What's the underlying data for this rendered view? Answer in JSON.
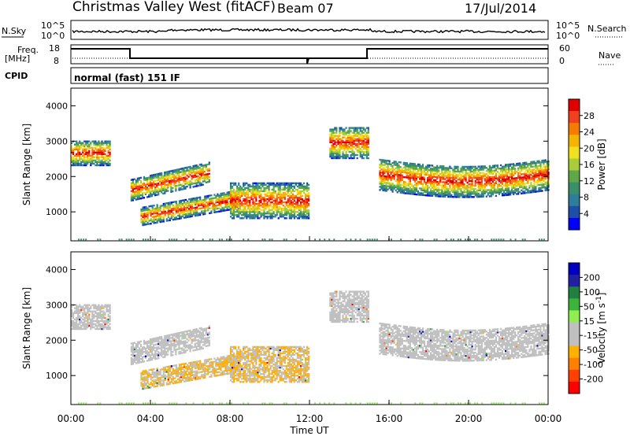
{
  "header": {
    "station": "Christmas Valley West (fitACF)",
    "beam": "Beam 07",
    "date": "17/Jul/2014"
  },
  "panels": {
    "sky_label": "N.Sky",
    "search_label": "N.Search",
    "freq_label": "Freq.",
    "freq_unit": "[MHz]",
    "nave_label": "Nave",
    "cpid_label": "CPID",
    "cpid_value": "normal (fast) 151 IF",
    "sky_ticks_left": [
      "10^5",
      "10^0"
    ],
    "sky_ticks_right": [
      "10^5",
      "10^0"
    ],
    "freq_ticks": [
      "18",
      "8"
    ],
    "nave_ticks": [
      "60",
      "0"
    ]
  },
  "colors": {
    "power_scale": [
      "#0000ff",
      "#1d4fa8",
      "#2e7d9b",
      "#3a8f6a",
      "#5fa84a",
      "#a8cc3a",
      "#f0e020",
      "#f5b400",
      "#f57c00",
      "#f04020",
      "#e00000"
    ],
    "velocity_scale": [
      "#ff0000",
      "#ff4000",
      "#ff8000",
      "#ffb000",
      "#c0c0c0",
      "#c0c0c0",
      "#90ee50",
      "#3cb43c",
      "#208040",
      "#2020a0",
      "#0000c0"
    ]
  },
  "chart_data": [
    {
      "type": "heatmap",
      "panel": "power",
      "ylabel": "Slant Range [km]",
      "yticks": [
        "4000",
        "3000",
        "2000",
        "1000"
      ],
      "ylim": [
        180,
        4500
      ],
      "colorbar_label": "Power [dB]",
      "colorbar_ticks": [
        "28",
        "24",
        "20",
        "16",
        "12",
        "8",
        "4"
      ],
      "colorbar_range": [
        0,
        30
      ],
      "echo_bands": [
        {
          "t0": 0.0,
          "t1": 2.0,
          "r0": 2300,
          "r1": 3000
        },
        {
          "t0": 3.0,
          "t1": 7.0,
          "r0": 1300,
          "r1": 1900
        },
        {
          "t0": 3.5,
          "t1": 8.5,
          "r0": 600,
          "r1": 1100
        },
        {
          "t0": 8.0,
          "t1": 12.0,
          "r0": 800,
          "r1": 1800
        },
        {
          "t0": 13.0,
          "t1": 15.0,
          "r0": 2500,
          "r1": 3400
        },
        {
          "t0": 15.5,
          "t1": 24.0,
          "r0": 1600,
          "r1": 2500
        }
      ]
    },
    {
      "type": "heatmap",
      "panel": "velocity",
      "ylabel": "Slant Range [km]",
      "yticks": [
        "4000",
        "3000",
        "2000",
        "1000"
      ],
      "ylim": [
        180,
        4500
      ],
      "xlabel": "Time UT",
      "xticks": [
        "00:00",
        "04:00",
        "08:00",
        "12:00",
        "16:00",
        "20:00",
        "00:00"
      ],
      "xlim": [
        0,
        24
      ],
      "colorbar_label": "Velocity [m s",
      "colorbar_label_sup": "-1",
      "colorbar_label_end": "]",
      "colorbar_ticks": [
        "200",
        "100",
        "50",
        "15",
        "-15",
        "-50",
        "-100",
        "-200"
      ]
    }
  ]
}
